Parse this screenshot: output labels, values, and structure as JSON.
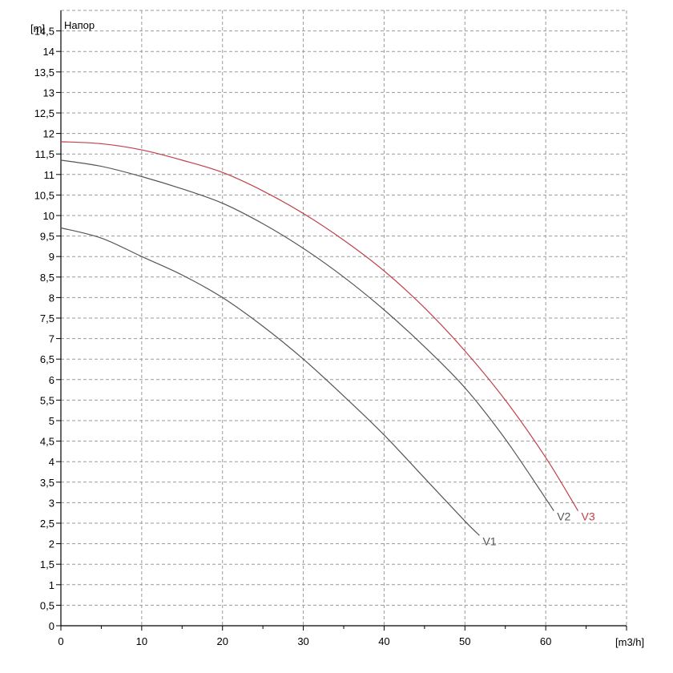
{
  "chart_data": {
    "type": "line",
    "title": "Напор",
    "y_unit": "[m]",
    "x_unit": "[m3/h]",
    "xlim": [
      0,
      70
    ],
    "ylim": [
      0,
      15
    ],
    "x_ticks": [
      0,
      10,
      20,
      30,
      40,
      50,
      60
    ],
    "x_tick_labels": [
      "0",
      "10",
      "20",
      "30",
      "40",
      "50",
      "60"
    ],
    "y_ticks": [
      0,
      0.5,
      1,
      1.5,
      2,
      2.5,
      3,
      3.5,
      4,
      4.5,
      5,
      5.5,
      6,
      6.5,
      7,
      7.5,
      8,
      8.5,
      9,
      9.5,
      10,
      10.5,
      11,
      11.5,
      12,
      12.5,
      13,
      13.5,
      14,
      14.5
    ],
    "y_tick_labels": [
      "0",
      "0,5",
      "1",
      "1,5",
      "2",
      "2,5",
      "3",
      "3,5",
      "4",
      "4,5",
      "5",
      "5,5",
      "6",
      "6,5",
      "7",
      "7,5",
      "8",
      "8,5",
      "9",
      "9,5",
      "10",
      "10,5",
      "11",
      "11,5",
      "12",
      "12,5",
      "13",
      "13,5",
      "14",
      "14,5"
    ],
    "grid": true,
    "series": [
      {
        "name": "V1",
        "color": "#555555",
        "x": [
          0,
          5,
          10,
          15,
          20,
          25,
          30,
          35,
          40,
          45,
          50,
          51.8
        ],
        "y": [
          9.7,
          9.45,
          9.0,
          8.55,
          8.0,
          7.3,
          6.5,
          5.6,
          4.65,
          3.6,
          2.55,
          2.2
        ]
      },
      {
        "name": "V2",
        "color": "#555555",
        "x": [
          0,
          5,
          10,
          15,
          20,
          25,
          30,
          35,
          40,
          45,
          50,
          55,
          60,
          61
        ],
        "y": [
          11.35,
          11.2,
          10.95,
          10.65,
          10.3,
          9.8,
          9.2,
          8.5,
          7.7,
          6.8,
          5.8,
          4.55,
          3.1,
          2.8
        ]
      },
      {
        "name": "V3",
        "color": "#c0404a",
        "x": [
          0,
          5,
          10,
          15,
          20,
          25,
          30,
          35,
          40,
          45,
          50,
          55,
          60,
          64
        ],
        "y": [
          11.8,
          11.75,
          11.6,
          11.35,
          11.05,
          10.6,
          10.05,
          9.4,
          8.65,
          7.75,
          6.7,
          5.5,
          4.1,
          2.8
        ]
      }
    ]
  }
}
